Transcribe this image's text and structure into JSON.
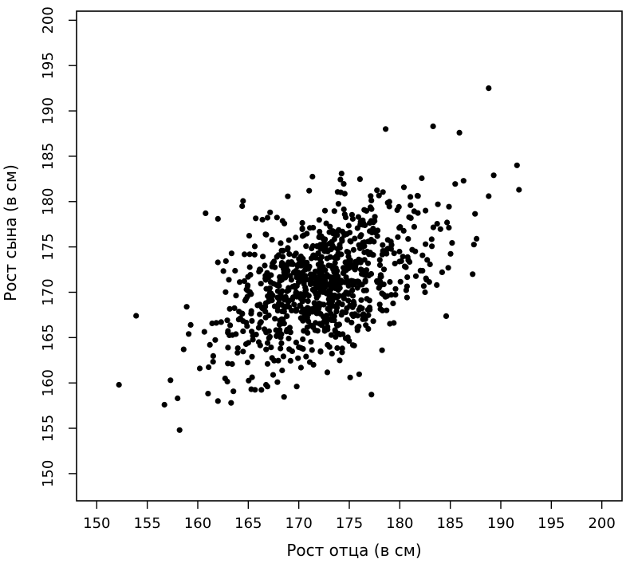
{
  "chart_data": {
    "type": "scatter",
    "title": "",
    "xlabel": "Рост отца (в см)",
    "ylabel": "Рост сына (в см)",
    "xlim": [
      148,
      202
    ],
    "ylim": [
      147,
      201
    ],
    "xticks": [
      150,
      155,
      160,
      165,
      170,
      175,
      180,
      185,
      190,
      195,
      200
    ],
    "yticks": [
      150,
      155,
      160,
      165,
      170,
      175,
      180,
      185,
      190,
      195,
      200
    ],
    "grid": false,
    "marker_color": "#000000",
    "points": [
      [
        152.2,
        159.8
      ],
      [
        153.9,
        167.4
      ],
      [
        156.7,
        157.6
      ],
      [
        157.3,
        160.3
      ],
      [
        158.0,
        158.3
      ],
      [
        158.2,
        154.8
      ],
      [
        158.6,
        163.7
      ],
      [
        158.9,
        168.4
      ],
      [
        159.1,
        165.4
      ],
      [
        159.3,
        166.4
      ],
      [
        188.8,
        192.5
      ],
      [
        191.8,
        181.3
      ],
      [
        191.6,
        184.0
      ],
      [
        189.3,
        182.9
      ],
      [
        188.8,
        180.6
      ],
      [
        187.6,
        175.9
      ],
      [
        185.9,
        187.6
      ],
      [
        183.3,
        188.3
      ],
      [
        178.6,
        188.0
      ],
      [
        184.8,
        172.7
      ],
      [
        182.5,
        170.0
      ],
      [
        160.2,
        161.6
      ],
      [
        161.2,
        164.2
      ],
      [
        162.0,
        158.0
      ],
      [
        163.3,
        157.8
      ],
      [
        165.3,
        159.3
      ],
      [
        166.9,
        159.6
      ],
      [
        169.8,
        159.6
      ],
      [
        162.0,
        178.1
      ],
      [
        164.4,
        179.5
      ],
      [
        166.4,
        178.0
      ]
    ],
    "clusters": [
      {
        "cx": 172.5,
        "cy": 171.0,
        "sx": 5.0,
        "sy": 4.5,
        "rho": 0.48,
        "count": 900
      }
    ]
  }
}
